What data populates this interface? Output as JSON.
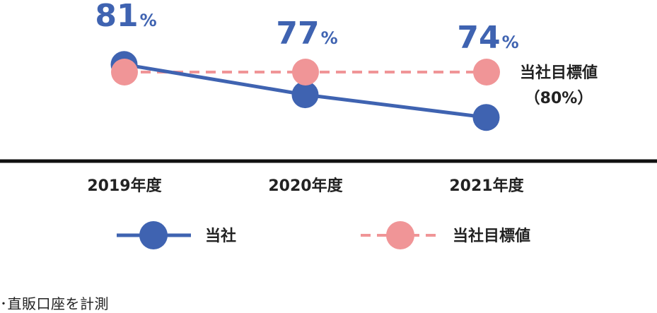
{
  "colors": {
    "company": "#3f63b1",
    "target": "#f09597",
    "axis": "#111111",
    "text": "#222222"
  },
  "chart_data": {
    "type": "line",
    "categories": [
      "2019年度",
      "2020年度",
      "2021年度"
    ],
    "series": [
      {
        "name": "当社",
        "values": [
          81,
          77,
          74
        ],
        "style": "solid",
        "marker": "circle",
        "color": "#3f63b1"
      },
      {
        "name": "当社目標値",
        "values": [
          80,
          80,
          80
        ],
        "style": "dashed",
        "marker": "circle",
        "color": "#f09597"
      }
    ],
    "value_labels": [
      {
        "number": "81",
        "unit": "%"
      },
      {
        "number": "77",
        "unit": "%"
      },
      {
        "number": "74",
        "unit": "%"
      }
    ],
    "target_annotation": {
      "line1": "当社目標値",
      "line2": "（80%）"
    },
    "legend": [
      {
        "label": "当社",
        "style": "solid"
      },
      {
        "label": "当社目標値",
        "style": "dashed"
      }
    ],
    "legend_position": "bottom",
    "grid": false
  },
  "footnote": "･直販口座を計測"
}
